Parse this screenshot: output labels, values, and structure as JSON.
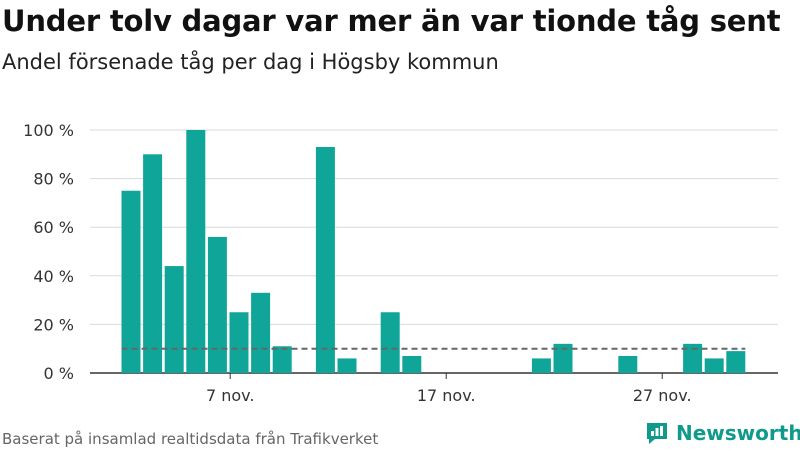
{
  "title": "Under tolv dagar var mer än var tionde tåg sent",
  "subtitle": "Andel försenade tåg per dag i Högsby kommun",
  "source": "Baserat på insamlad realtidsdata från Trafikverket",
  "brand": {
    "name": "Newsworthy",
    "icon": "newsworthy-logo-icon",
    "color": "#0f9a8c"
  },
  "colors": {
    "bar": "#0fa599",
    "grid": "#d9d9d9",
    "reference": "#666666"
  },
  "chart_data": {
    "type": "bar",
    "x_unit": "date",
    "categories": [
      "2 nov.",
      "3 nov.",
      "4 nov.",
      "5 nov.",
      "6 nov.",
      "7 nov.",
      "8 nov.",
      "9 nov.",
      "10 nov.",
      "11 nov.",
      "12 nov.",
      "13 nov.",
      "14 nov.",
      "15 nov.",
      "16 nov.",
      "17 nov.",
      "18 nov.",
      "19 nov.",
      "20 nov.",
      "21 nov.",
      "22 nov.",
      "23 nov.",
      "24 nov.",
      "25 nov.",
      "26 nov.",
      "27 nov.",
      "28 nov.",
      "29 nov.",
      "30 nov."
    ],
    "values": [
      75,
      90,
      44,
      100,
      56,
      25,
      33,
      11,
      0,
      93,
      6,
      0,
      25,
      7,
      0,
      0,
      0,
      0,
      0,
      6,
      12,
      0,
      0,
      7,
      0,
      0,
      12,
      6,
      9
    ],
    "reference_line": 10,
    "x_ticks": [
      {
        "index": 5,
        "label": "7 nov."
      },
      {
        "index": 15,
        "label": "17 nov."
      },
      {
        "index": 25,
        "label": "27 nov."
      }
    ],
    "y_ticks": [
      0,
      20,
      40,
      60,
      80,
      100
    ],
    "y_tick_labels": [
      "0 %",
      "20 %",
      "40 %",
      "60 %",
      "80 %",
      "100 %"
    ],
    "ylim": [
      0,
      100
    ],
    "grid": true
  }
}
